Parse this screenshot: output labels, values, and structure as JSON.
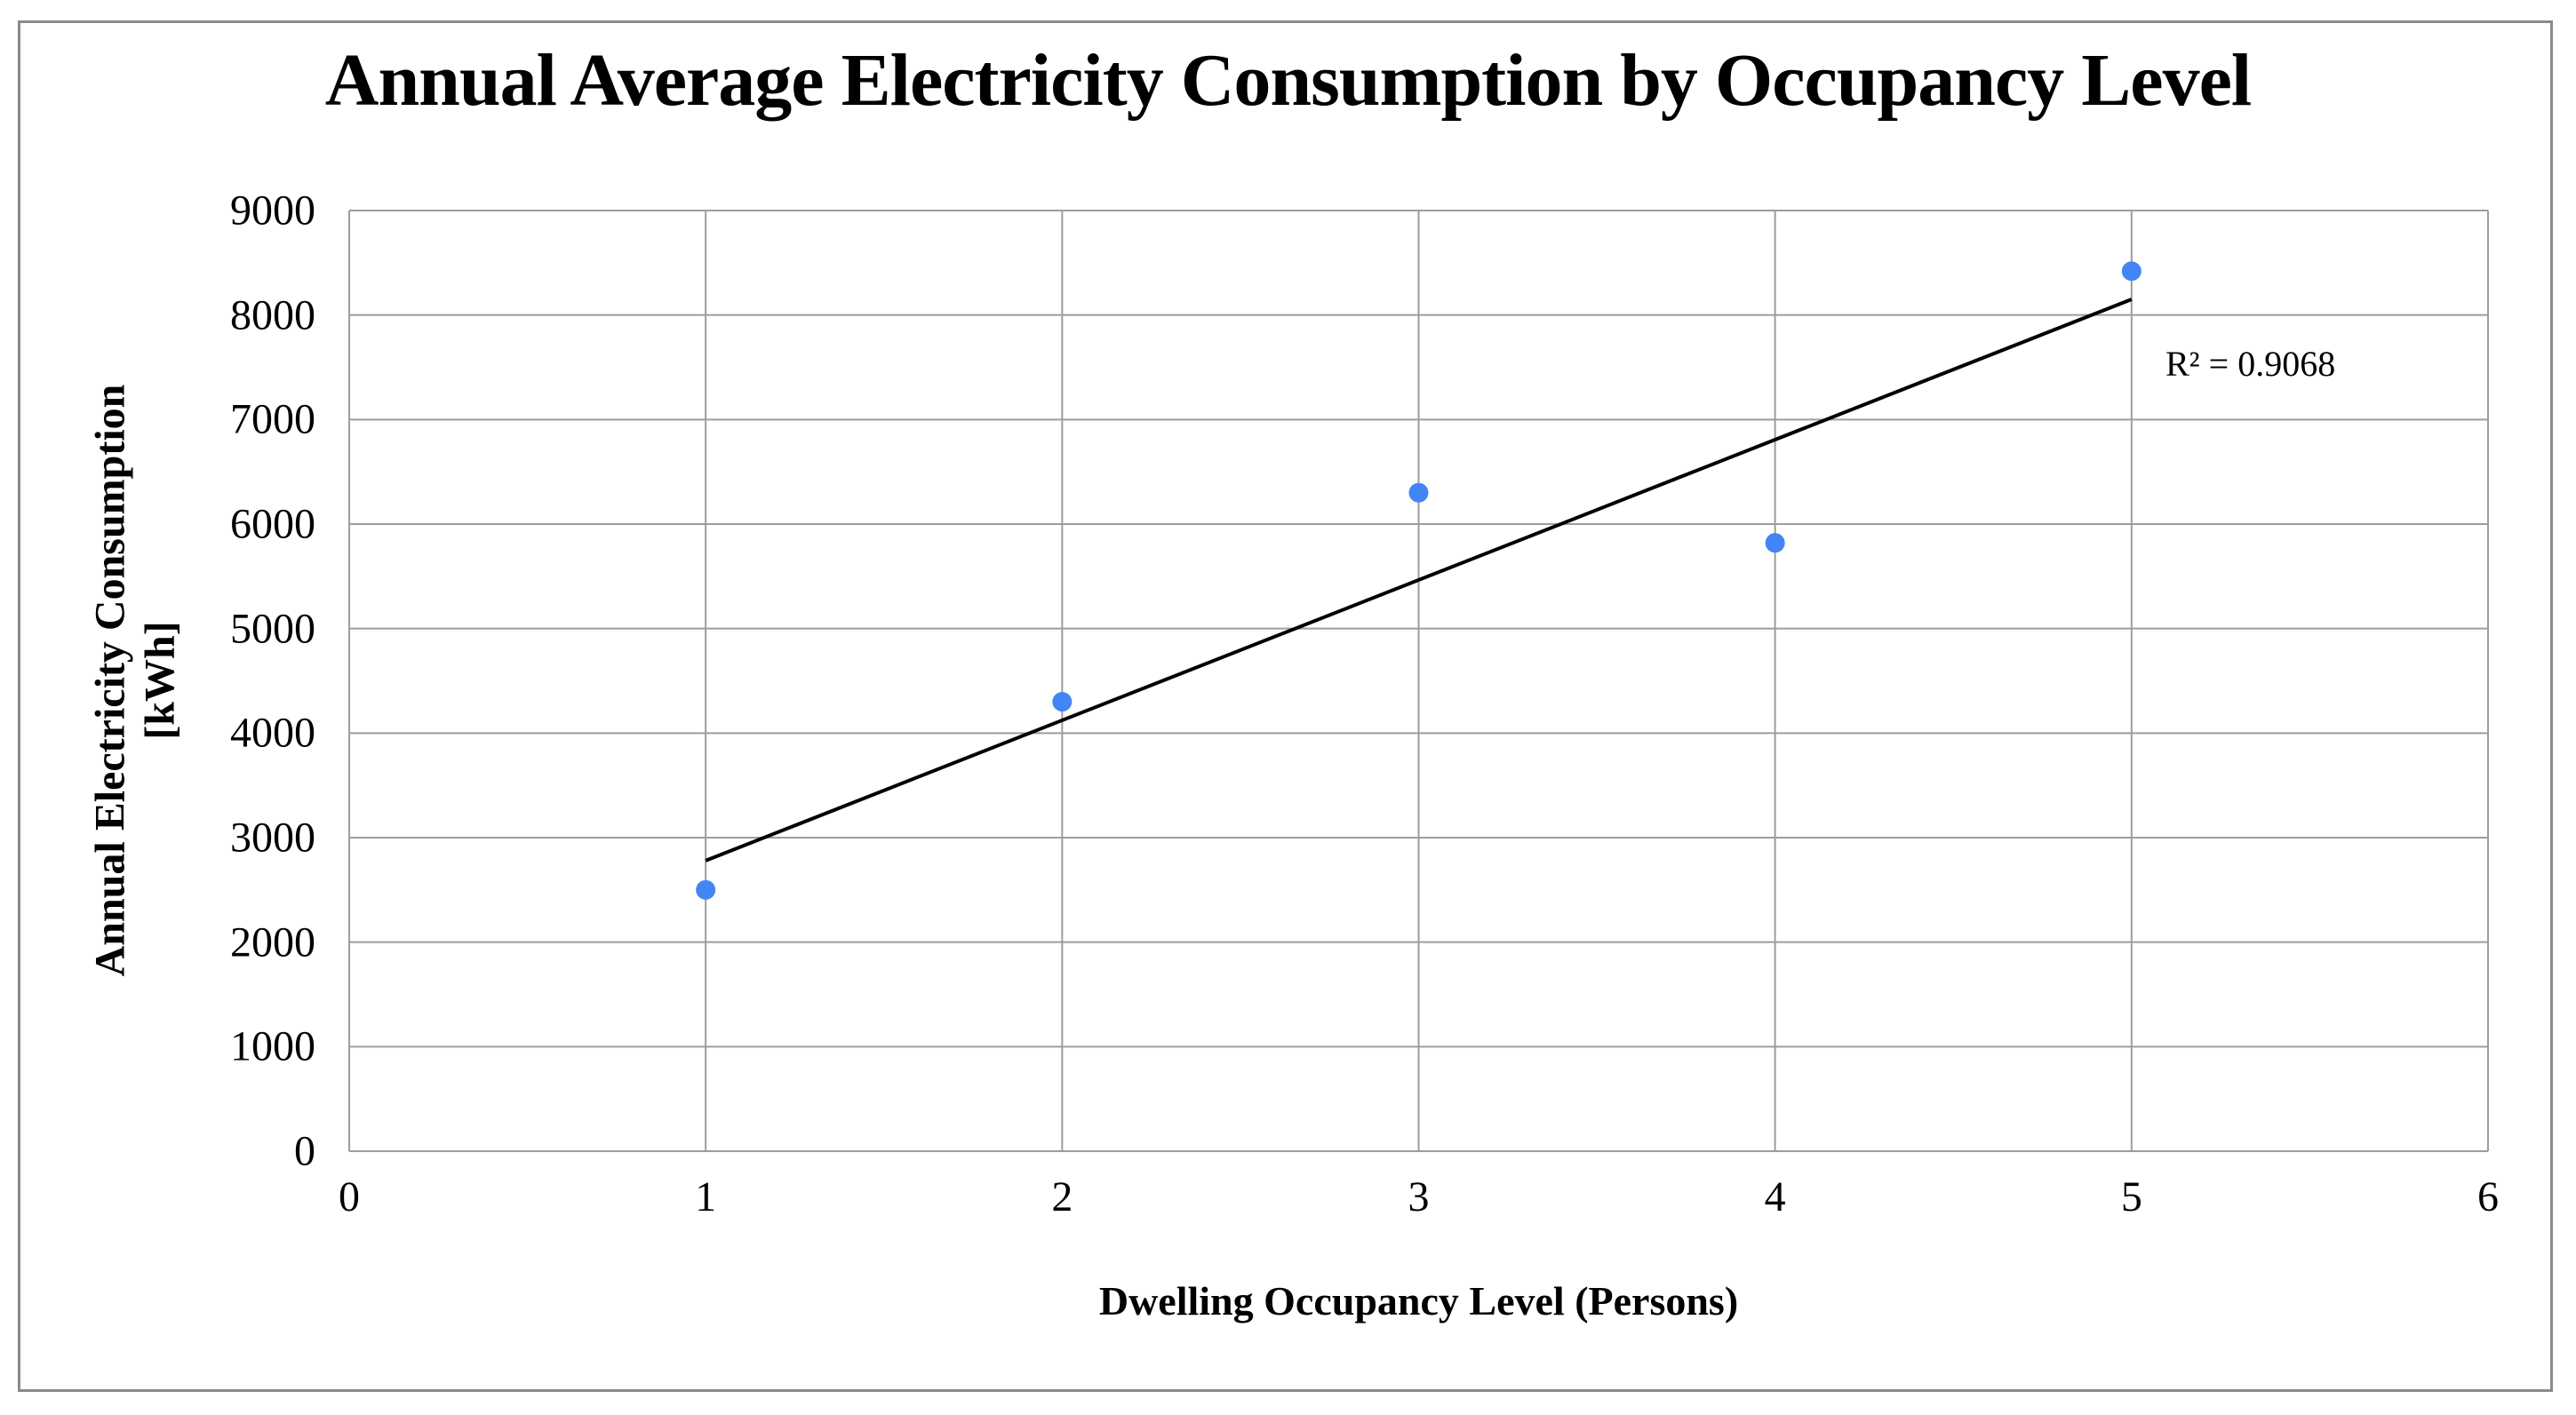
{
  "chart_data": {
    "type": "scatter",
    "title": "Annual Average Electricity Consumption by Occupancy Level",
    "xlabel": "Dwelling Occupancy Level (Persons)",
    "ylabel": "Annual Electricity Consumption [kWh]",
    "ylabel_lines": [
      "Annual Electricity Consumption",
      "[kWh]"
    ],
    "x": [
      1,
      2,
      3,
      4,
      5
    ],
    "y": [
      2500,
      4300,
      6300,
      5820,
      8420
    ],
    "xlim": [
      0,
      6
    ],
    "ylim": [
      0,
      9000
    ],
    "x_ticks": [
      0,
      1,
      2,
      3,
      4,
      5,
      6
    ],
    "y_ticks": [
      0,
      1000,
      2000,
      3000,
      4000,
      5000,
      6000,
      7000,
      8000,
      9000
    ],
    "grid": true,
    "legend": "none",
    "trendline": {
      "type": "linear",
      "x_start": 1,
      "y_start": 2780,
      "x_end": 5,
      "y_end": 8150,
      "r_squared_label": "R² = 0.9068"
    },
    "colors": {
      "point": "#4285F4",
      "trendline": "#000000",
      "gridline": "#9D9D9D",
      "border": "#8A8A8A",
      "text": "#000000"
    }
  }
}
